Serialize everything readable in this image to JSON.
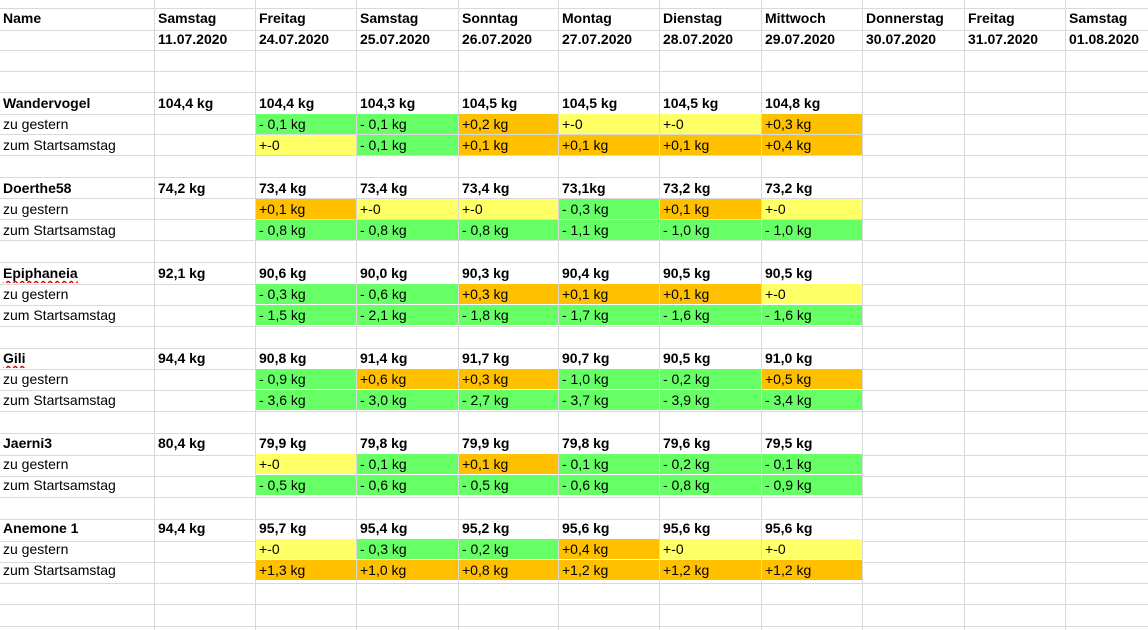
{
  "colors": {
    "green": "#66ff66",
    "yellow": "#ffff66",
    "orange": "#ffc000",
    "gridline": "#d9d9d9"
  },
  "header": {
    "name_label": "Name",
    "days": [
      {
        "day": "Samstag",
        "date": "11.07.2020"
      },
      {
        "day": "Freitag",
        "date": "24.07.2020"
      },
      {
        "day": "Samstag",
        "date": "25.07.2020"
      },
      {
        "day": "Sonntag",
        "date": "26.07.2020"
      },
      {
        "day": "Montag",
        "date": "27.07.2020"
      },
      {
        "day": "Dienstag",
        "date": "28.07.2020"
      },
      {
        "day": "Mittwoch",
        "date": "29.07.2020"
      },
      {
        "day": "Donnerstag",
        "date": "30.07.2020"
      },
      {
        "day": "Freitag",
        "date": "31.07.2020"
      },
      {
        "day": "Samstag",
        "date": "01.08.2020"
      }
    ]
  },
  "row_labels": {
    "vs_yesterday": "zu gestern",
    "vs_start": "zum Startsamstag"
  },
  "people": [
    {
      "name": "Wandervogel",
      "start": "104,4 kg",
      "weights": [
        "104,4 kg",
        "104,3 kg",
        "104,5 kg",
        "104,5 kg",
        "104,5 kg",
        "104,8 kg"
      ],
      "vs_yesterday": [
        {
          "v": "- 0,1 kg",
          "c": "green"
        },
        {
          "v": "- 0,1 kg",
          "c": "green"
        },
        {
          "v": "+0,2 kg",
          "c": "orange"
        },
        {
          "v": "+-0",
          "c": "yellow"
        },
        {
          "v": "+-0",
          "c": "yellow"
        },
        {
          "v": "+0,3 kg",
          "c": "orange"
        }
      ],
      "vs_start": [
        {
          "v": "+-0",
          "c": "yellow"
        },
        {
          "v": "- 0,1 kg",
          "c": "green"
        },
        {
          "v": "+0,1 kg",
          "c": "orange"
        },
        {
          "v": "+0,1 kg",
          "c": "orange"
        },
        {
          "v": "+0,1 kg",
          "c": "orange"
        },
        {
          "v": "+0,4 kg",
          "c": "orange"
        }
      ]
    },
    {
      "name": "Doerthe58",
      "start": "74,2 kg",
      "weights": [
        "73,4 kg",
        "73,4 kg",
        "73,4 kg",
        "73,1kg",
        "73,2 kg",
        "73,2 kg"
      ],
      "vs_yesterday": [
        {
          "v": "+0,1 kg",
          "c": "orange"
        },
        {
          "v": "+-0",
          "c": "yellow"
        },
        {
          "v": "+-0",
          "c": "yellow"
        },
        {
          "v": "- 0,3  kg",
          "c": "green"
        },
        {
          "v": "+0,1 kg",
          "c": "orange"
        },
        {
          "v": "+-0",
          "c": "yellow"
        }
      ],
      "vs_start": [
        {
          "v": "- 0,8 kg",
          "c": "green"
        },
        {
          "v": "- 0,8 kg",
          "c": "green"
        },
        {
          "v": "- 0,8 kg",
          "c": "green"
        },
        {
          "v": "- 1,1  kg",
          "c": "green"
        },
        {
          "v": "- 1,0 kg",
          "c": "green"
        },
        {
          "v": "- 1,0 kg",
          "c": "green"
        }
      ]
    },
    {
      "name": "Epiphaneia",
      "start": "92,1 kg",
      "weights": [
        "90,6 kg",
        "90,0 kg",
        "90,3 kg",
        "90,4 kg",
        "90,5 kg",
        "90,5 kg"
      ],
      "vs_yesterday": [
        {
          "v": "- 0,3 kg",
          "c": "green"
        },
        {
          "v": "- 0,6 kg",
          "c": "green"
        },
        {
          "v": "+0,3 kg",
          "c": "orange"
        },
        {
          "v": "+0,1 kg",
          "c": "orange"
        },
        {
          "v": "+0,1 kg",
          "c": "orange"
        },
        {
          "v": "+-0",
          "c": "yellow"
        }
      ],
      "vs_start": [
        {
          "v": "- 1,5 kg",
          "c": "green"
        },
        {
          "v": "- 2,1 kg",
          "c": "green"
        },
        {
          "v": "- 1,8 kg",
          "c": "green"
        },
        {
          "v": "- 1,7 kg",
          "c": "green"
        },
        {
          "v": "- 1,6 kg",
          "c": "green"
        },
        {
          "v": "- 1,6 kg",
          "c": "green"
        }
      ]
    },
    {
      "name": "Gili",
      "start": "94,4 kg",
      "weights": [
        "90,8 kg",
        "91,4 kg",
        "91,7 kg",
        "90,7 kg",
        "90,5 kg",
        "91,0 kg"
      ],
      "vs_yesterday": [
        {
          "v": "- 0,9 kg",
          "c": "green"
        },
        {
          "v": "+0,6 kg",
          "c": "orange"
        },
        {
          "v": "+0,3 kg",
          "c": "orange"
        },
        {
          "v": "- 1,0 kg",
          "c": "green"
        },
        {
          "v": "- 0,2 kg",
          "c": "green"
        },
        {
          "v": "+0,5 kg",
          "c": "orange"
        }
      ],
      "vs_start": [
        {
          "v": "- 3,6 kg",
          "c": "green"
        },
        {
          "v": "- 3,0 kg",
          "c": "green"
        },
        {
          "v": "- 2,7 kg",
          "c": "green"
        },
        {
          "v": "- 3,7 kg",
          "c": "green"
        },
        {
          "v": "- 3,9 kg",
          "c": "green"
        },
        {
          "v": "- 3,4 kg",
          "c": "green"
        }
      ]
    },
    {
      "name": "Jaerni3",
      "start": "80,4 kg",
      "weights": [
        "79,9 kg",
        "79,8 kg",
        "79,9 kg",
        "79,8 kg",
        "79,6 kg",
        "79,5 kg"
      ],
      "vs_yesterday": [
        {
          "v": "+-0",
          "c": "yellow"
        },
        {
          "v": "- 0,1 kg",
          "c": "green"
        },
        {
          "v": "+0,1 kg",
          "c": "orange"
        },
        {
          "v": "- 0,1 kg",
          "c": "green"
        },
        {
          "v": "- 0,2 kg",
          "c": "green"
        },
        {
          "v": "- 0,1 kg",
          "c": "green"
        }
      ],
      "vs_start": [
        {
          "v": "- 0,5 kg",
          "c": "green"
        },
        {
          "v": "- 0,6 kg",
          "c": "green"
        },
        {
          "v": "- 0,5 kg",
          "c": "green"
        },
        {
          "v": "- 0,6 kg",
          "c": "green"
        },
        {
          "v": "- 0,8 kg",
          "c": "green"
        },
        {
          "v": "- 0,9 kg",
          "c": "green"
        }
      ]
    },
    {
      "name": "Anemone 1",
      "start": "94,4 kg",
      "weights": [
        "95,7 kg",
        "95,4 kg",
        "95,2 kg",
        "95,6 kg",
        "95,6 kg",
        "95,6 kg"
      ],
      "vs_yesterday": [
        {
          "v": "+-0",
          "c": "yellow"
        },
        {
          "v": "- 0,3 kg",
          "c": "green"
        },
        {
          "v": "- 0,2 kg",
          "c": "green"
        },
        {
          "v": "+0,4 kg",
          "c": "orange"
        },
        {
          "v": "+-0",
          "c": "yellow"
        },
        {
          "v": "+-0",
          "c": "yellow"
        }
      ],
      "vs_start": [
        {
          "v": "+1,3 kg",
          "c": "orange"
        },
        {
          "v": "+1,0 kg",
          "c": "orange"
        },
        {
          "v": "+0,8 kg",
          "c": "orange"
        },
        {
          "v": "+1,2 kg",
          "c": "orange"
        },
        {
          "v": "+1,2 kg",
          "c": "orange"
        },
        {
          "v": "+1,2 kg",
          "c": "orange"
        }
      ]
    }
  ]
}
